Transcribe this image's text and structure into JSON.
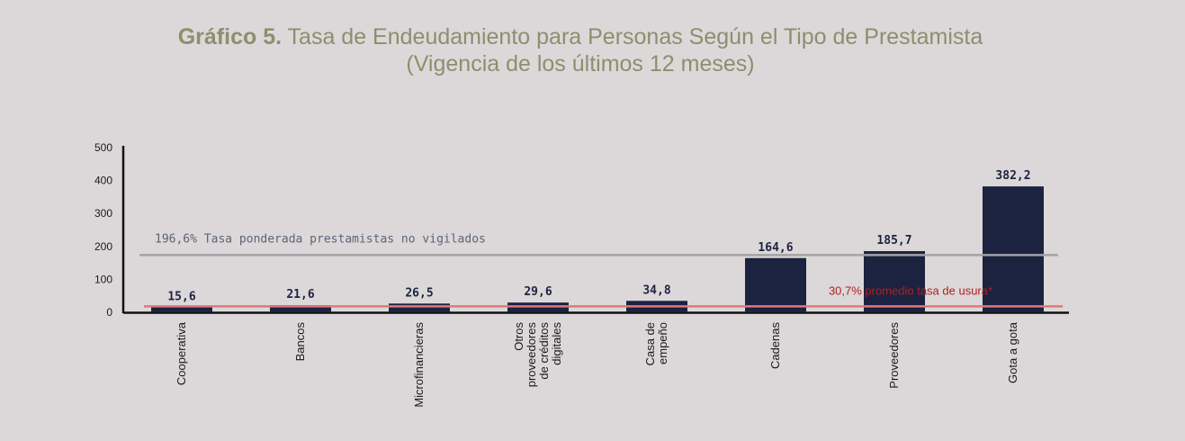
{
  "title": {
    "prefix": "Gráfico 5.",
    "main": "Tasa de Endeudamiento para Personas Según el Tipo de Prestamista",
    "sub": "(Vigencia de los últimos 12 meses)"
  },
  "chart_data": {
    "type": "bar",
    "categories": [
      [
        "Cooperativa"
      ],
      [
        "Bancos"
      ],
      [
        "Microfinancieras"
      ],
      [
        "Otros",
        "proveedores",
        "de créditos",
        "digitales"
      ],
      [
        "Casa de",
        "empeño"
      ],
      [
        "Cadenas"
      ],
      [
        "Proveedores"
      ],
      [
        "Gota a gota"
      ]
    ],
    "values": [
      15.6,
      21.6,
      26.5,
      29.6,
      34.8,
      164.6,
      185.7,
      382.2
    ],
    "value_labels": [
      "15,6",
      "21,6",
      "26,5",
      "29,6",
      "34,8",
      "164,6",
      "185,7",
      "382,2"
    ],
    "ylim": [
      0,
      500
    ],
    "yticks": [
      0,
      100,
      200,
      300,
      400,
      500
    ],
    "bar_color": "#1c2340",
    "reference_lines": [
      {
        "value": 174,
        "label": "196,6% Tasa ponderada prestamistas  no vigilados",
        "color": "#a3a3a6"
      },
      {
        "value": 21,
        "label": "30,7% promedio tasa de usura*",
        "color": "#e07878"
      }
    ]
  }
}
